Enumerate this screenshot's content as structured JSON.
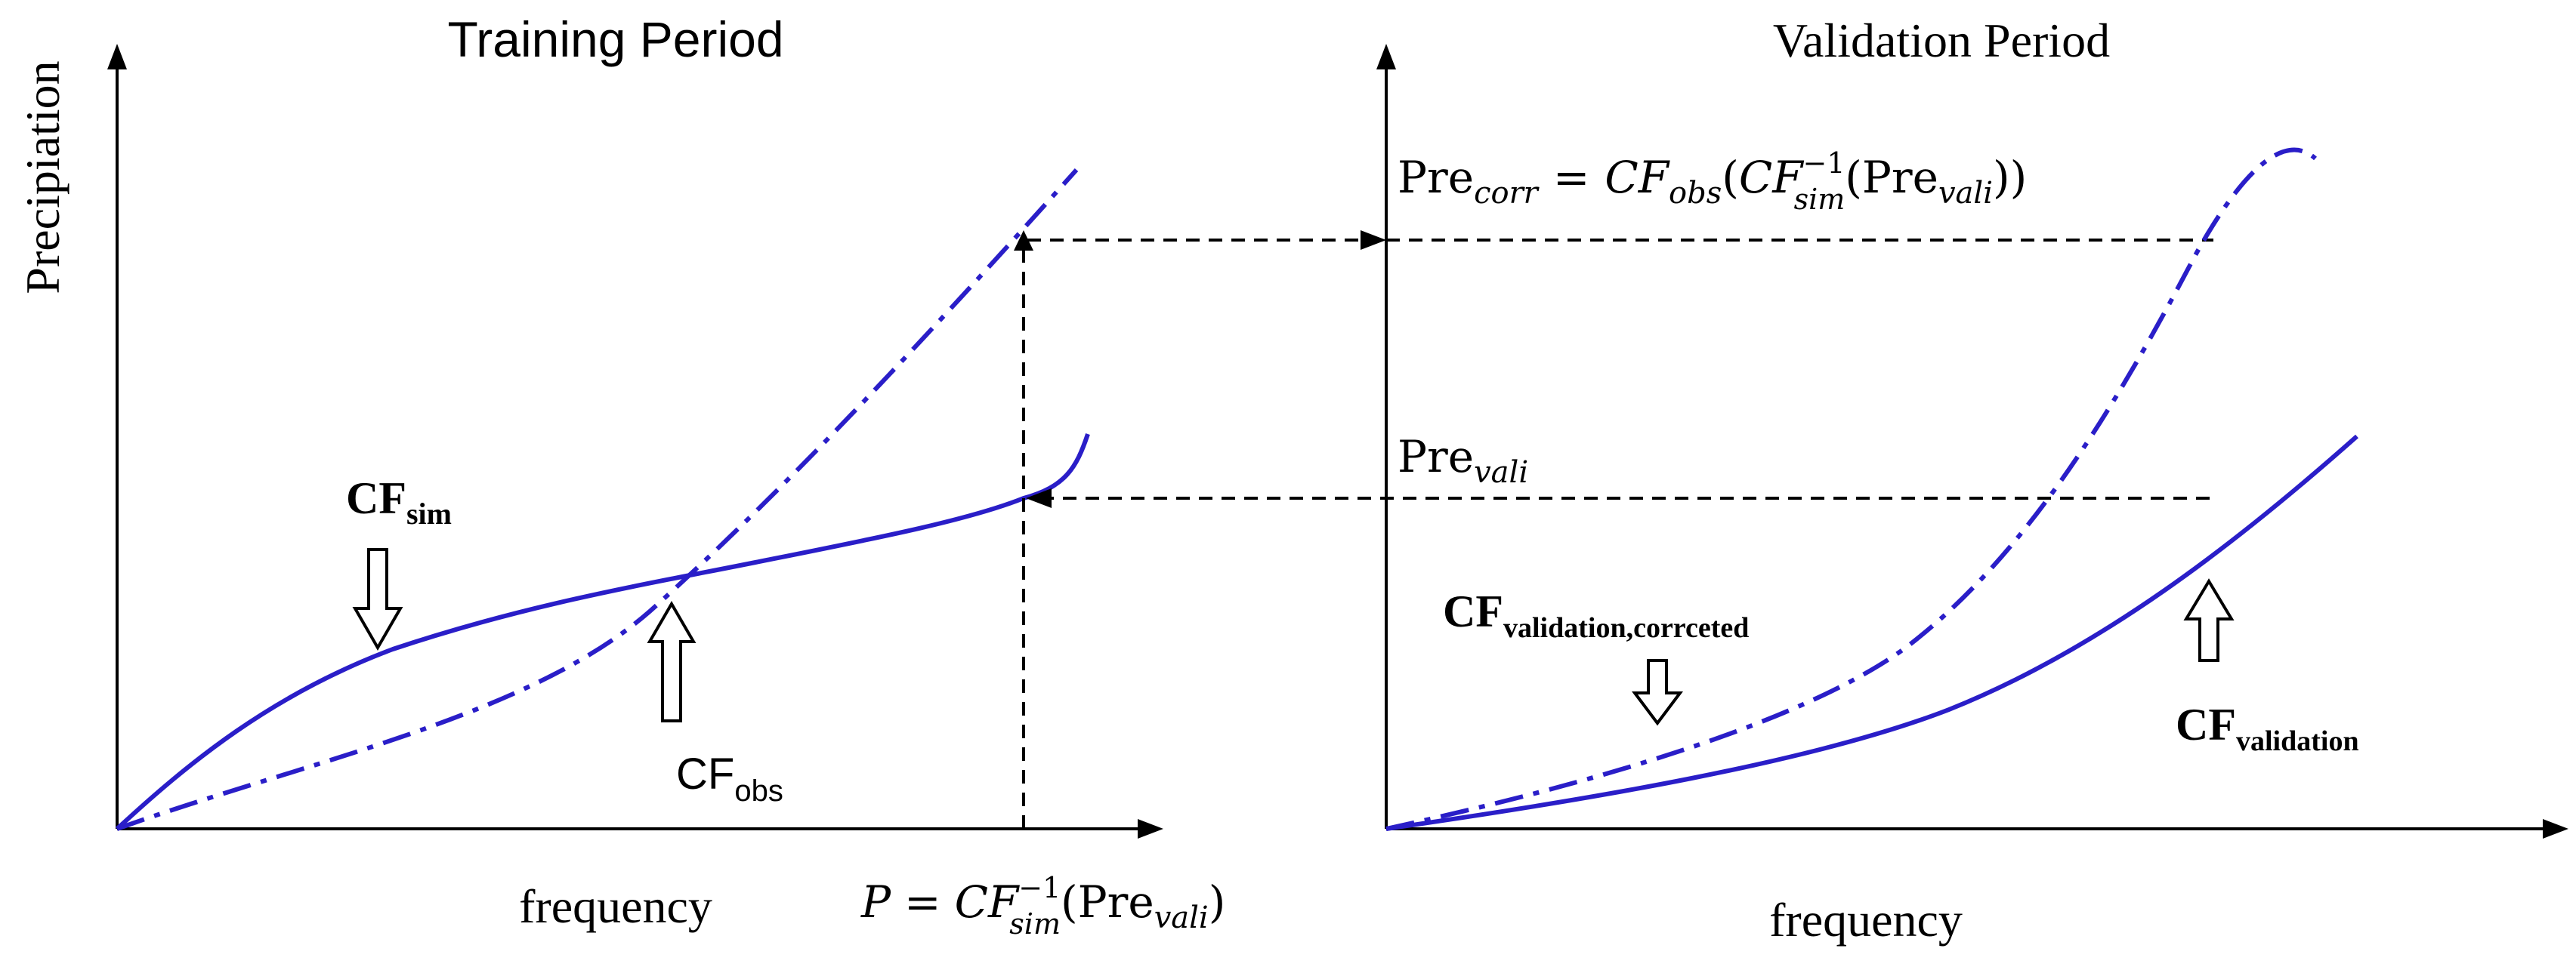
{
  "colors": {
    "curve": "#2a1ec8",
    "axis": "#000000",
    "text": "#000000"
  },
  "training": {
    "title": "Training Period",
    "ylabel": "Precipiation",
    "xlabel": "frequency",
    "cf_sim": {
      "base": "CF",
      "sub": "sim"
    },
    "cf_obs": {
      "base": "CF",
      "sub": "obs"
    },
    "formula_p": {
      "lhs": "P",
      "eq": "=",
      "cf": "CF",
      "sup": "−1",
      "sub": "sim",
      "open": "(Pre",
      "vali": "vali",
      "close": ")"
    }
  },
  "validation": {
    "title": "Validation Period",
    "xlabel": "frequency",
    "formula_corr": {
      "pre": "Pre",
      "corr": "corr",
      "eq": "=",
      "cf_obs": "CF",
      "obs": "obs",
      "open1": "(",
      "cf_sim": "CF",
      "sup": "−1",
      "sim": "sim",
      "open2": "(Pre",
      "vali": "vali",
      "close": "))"
    },
    "pre_vali": {
      "pre": "Pre",
      "sub": "vali"
    },
    "cf_validation_corrected": {
      "base": "CF",
      "sub": "validation,corrceted"
    },
    "cf_validation": {
      "base": "CF",
      "sub": "validation"
    }
  }
}
